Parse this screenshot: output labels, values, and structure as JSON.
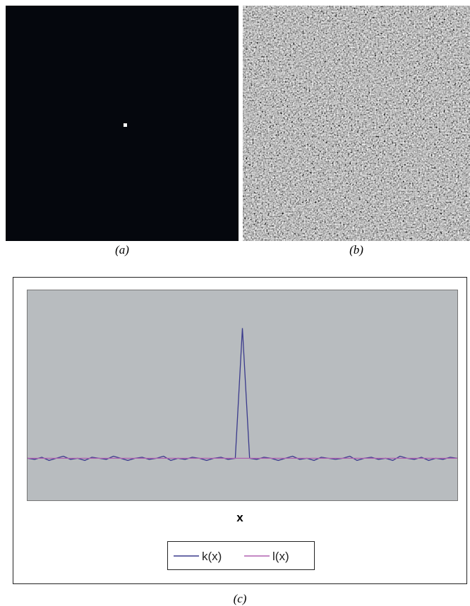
{
  "panels": {
    "a": {
      "caption": "(a)"
    },
    "b": {
      "caption": "(b)"
    }
  },
  "chart_data": {
    "type": "line",
    "caption": "(c)",
    "x_label": "x",
    "ylim": [
      0,
      1
    ],
    "legend": "bottom",
    "series": [
      {
        "name": "k(x)",
        "color": "#3a3a8c",
        "values": [
          0.2,
          0.195,
          0.205,
          0.19,
          0.2,
          0.21,
          0.195,
          0.2,
          0.19,
          0.205,
          0.2,
          0.195,
          0.21,
          0.2,
          0.19,
          0.2,
          0.205,
          0.195,
          0.2,
          0.21,
          0.19,
          0.2,
          0.195,
          0.205,
          0.2,
          0.19,
          0.2,
          0.205,
          0.195,
          0.2,
          0.82,
          0.2,
          0.195,
          0.205,
          0.2,
          0.19,
          0.2,
          0.21,
          0.195,
          0.2,
          0.19,
          0.205,
          0.2,
          0.195,
          0.2,
          0.21,
          0.19,
          0.2,
          0.205,
          0.195,
          0.2,
          0.19,
          0.21,
          0.2,
          0.195,
          0.205,
          0.19,
          0.2,
          0.195,
          0.205,
          0.2
        ]
      },
      {
        "name": "l(x)",
        "color": "#b060b0",
        "values": [
          0.2,
          0.2
        ]
      }
    ]
  }
}
